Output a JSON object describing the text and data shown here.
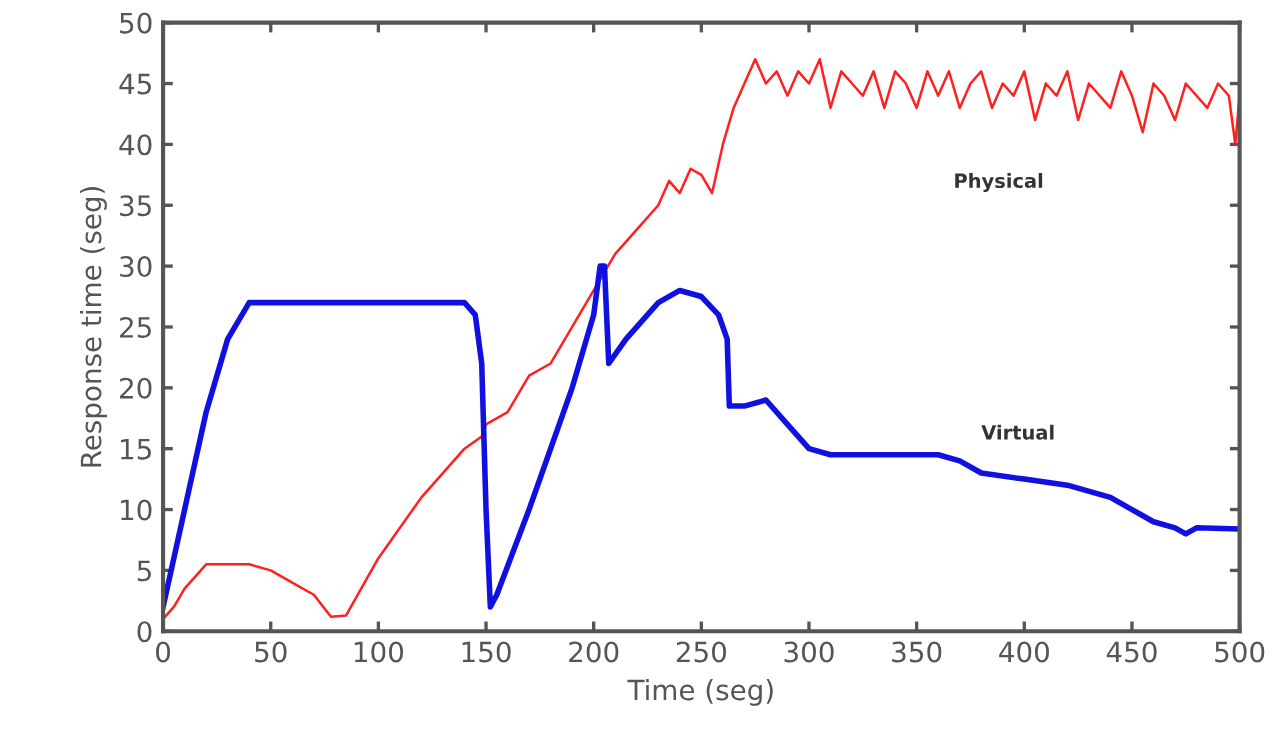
{
  "chart_data": {
    "type": "line",
    "xlabel": "Time (seg)",
    "ylabel": "Response time (seg)",
    "xlim": [
      0,
      500
    ],
    "ylim": [
      0,
      50
    ],
    "xticks": [
      0,
      50,
      100,
      150,
      200,
      250,
      300,
      350,
      400,
      450,
      500
    ],
    "yticks": [
      0,
      5,
      10,
      15,
      20,
      25,
      30,
      35,
      40,
      45,
      50
    ],
    "grid": false,
    "legend": false,
    "marker": "none",
    "line_style": "solid",
    "series": [
      {
        "name": "Physical",
        "color": "#ff2020",
        "x": [
          0,
          5,
          10,
          20,
          40,
          50,
          60,
          70,
          78,
          85,
          100,
          120,
          140,
          148,
          150,
          160,
          170,
          180,
          190,
          200,
          210,
          220,
          230,
          235,
          240,
          245,
          250,
          255,
          260,
          265,
          270,
          275,
          280,
          285,
          290,
          295,
          300,
          305,
          310,
          315,
          320,
          325,
          330,
          335,
          340,
          345,
          350,
          355,
          360,
          365,
          370,
          375,
          380,
          385,
          390,
          395,
          400,
          405,
          410,
          415,
          420,
          425,
          430,
          440,
          445,
          450,
          455,
          460,
          465,
          470,
          475,
          480,
          485,
          490,
          495,
          498,
          500
        ],
        "values": [
          1,
          2,
          3.5,
          5.5,
          5.5,
          5,
          4,
          3,
          1.2,
          1.3,
          6,
          11,
          15,
          16,
          17,
          18,
          21,
          22,
          25,
          28,
          31,
          33,
          35,
          37,
          36,
          38,
          37.5,
          36,
          40,
          43,
          45,
          47,
          45,
          46,
          44,
          46,
          45,
          47,
          43,
          46,
          45,
          44,
          46,
          43,
          46,
          45,
          43,
          46,
          44,
          46,
          43,
          45,
          46,
          43,
          45,
          44,
          46,
          42,
          45,
          44,
          46,
          42,
          45,
          43,
          46,
          44,
          41,
          45,
          44,
          42,
          45,
          44,
          43,
          45,
          44,
          40,
          44
        ]
      },
      {
        "name": "Virtual",
        "color": "#1010e0",
        "x": [
          0,
          10,
          20,
          30,
          40,
          50,
          100,
          140,
          145,
          148,
          150,
          152,
          155,
          170,
          190,
          200,
          203,
          205,
          207,
          215,
          230,
          240,
          250,
          258,
          262,
          263,
          270,
          280,
          290,
          300,
          310,
          350,
          360,
          370,
          380,
          400,
          420,
          440,
          450,
          460,
          470,
          475,
          480,
          500
        ],
        "values": [
          2,
          10,
          18,
          24,
          27,
          27,
          27,
          27,
          26,
          22,
          10,
          2,
          3,
          10,
          20,
          26,
          30,
          30,
          22,
          24,
          27,
          28,
          27.5,
          26,
          24,
          18.5,
          18.5,
          19,
          17,
          15,
          14.5,
          14.5,
          14.5,
          14,
          13,
          12.5,
          12,
          11,
          10,
          9,
          8.5,
          8,
          8.5,
          8.4
        ]
      }
    ]
  }
}
